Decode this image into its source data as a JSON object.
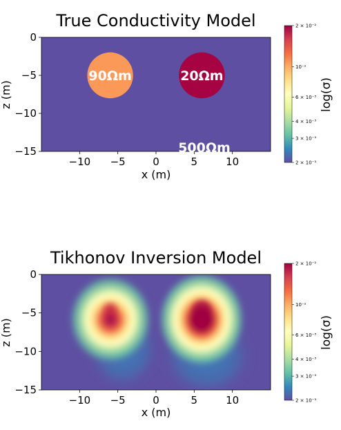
{
  "chart_data": [
    {
      "type": "heatmap",
      "title": "True Conductivity Model",
      "xlabel": "x (m)",
      "ylabel": "z (m)",
      "xlim": [
        -15,
        15
      ],
      "ylim": [
        -15,
        0
      ],
      "x_ticks": [
        -10,
        -5,
        0,
        5,
        10
      ],
      "x_tick_labels": [
        "−10",
        "−5",
        "0",
        "5",
        "10"
      ],
      "y_ticks": [
        0,
        -5,
        -10,
        -15
      ],
      "y_tick_labels": [
        "0",
        "−5",
        "−10",
        "−15"
      ],
      "background_resistivity_label": "500Ωm",
      "anomalies": [
        {
          "label": "90Ωm",
          "x": -6,
          "z": -5,
          "radius": 3,
          "conductivity": 0.0111
        },
        {
          "label": "20Ωm",
          "x": 6,
          "z": -5,
          "radius": 3,
          "conductivity": 0.05
        }
      ],
      "background_conductivity": 0.002,
      "colorbar": {
        "label": "log(σ)",
        "scale": "log",
        "range": [
          0.002,
          0.02
        ],
        "ticks": [
          {
            "value": 0.02,
            "label": "2 × 10⁻²"
          },
          {
            "value": 0.01,
            "label": "10⁻²"
          },
          {
            "value": 0.006,
            "label": "6 × 10⁻³"
          },
          {
            "value": 0.004,
            "label": "4 × 10⁻³"
          },
          {
            "value": 0.003,
            "label": "3 × 10⁻³"
          },
          {
            "value": 0.002,
            "label": "2 × 10⁻³"
          }
        ]
      }
    },
    {
      "type": "heatmap",
      "title": "Tikhonov Inversion Model",
      "xlabel": "x (m)",
      "ylabel": "z (m)",
      "xlim": [
        -15,
        15
      ],
      "ylim": [
        -15,
        0
      ],
      "x_ticks": [
        -10,
        -5,
        0,
        5,
        10
      ],
      "x_tick_labels": [
        "−10",
        "−5",
        "0",
        "5",
        "10"
      ],
      "y_ticks": [
        0,
        -5,
        -10,
        -15
      ],
      "y_tick_labels": [
        "0",
        "−5",
        "−10",
        "−15"
      ],
      "blobs": [
        {
          "x": -6,
          "z": -4.5,
          "peak_conductivity": 0.016
        },
        {
          "x": 6,
          "z": -4.5,
          "peak_conductivity": 0.022
        }
      ],
      "background_conductivity": 0.0022,
      "colorbar": {
        "label": "log(σ)",
        "scale": "log",
        "range": [
          0.002,
          0.02
        ],
        "ticks": [
          {
            "value": 0.02,
            "label": "2 × 10⁻²"
          },
          {
            "value": 0.01,
            "label": "10⁻²"
          },
          {
            "value": 0.006,
            "label": "6 × 10⁻³"
          },
          {
            "value": 0.004,
            "label": "4 × 10⁻³"
          },
          {
            "value": 0.003,
            "label": "3 × 10⁻³"
          },
          {
            "value": 0.002,
            "label": "2 × 10⁻³"
          }
        ]
      }
    }
  ]
}
